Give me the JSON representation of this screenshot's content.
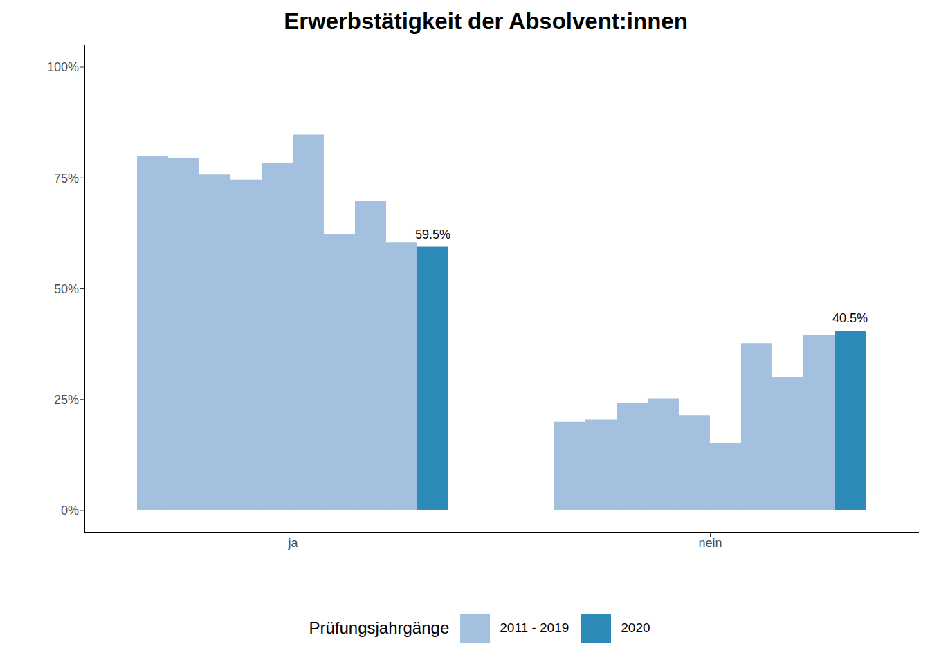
{
  "chart_data": {
    "type": "bar",
    "title": "Erwerbstätigkeit der Absolvent:innen",
    "categories": [
      "ja",
      "nein"
    ],
    "legend_title": "Prüfungsjahrgänge",
    "legend": "bottom",
    "grid": false,
    "ylim": [
      -5,
      105
    ],
    "yticks": [
      {
        "value": 0,
        "label": "0%"
      },
      {
        "value": 25,
        "label": "25%"
      },
      {
        "value": 50,
        "label": "50%"
      },
      {
        "value": 75,
        "label": "75%"
      },
      {
        "value": 100,
        "label": "100%"
      }
    ],
    "series": [
      {
        "name": "2011 - 2019",
        "color": "#a3c1de",
        "values": [
          [
            80,
            79.5,
            75.8,
            74.6,
            78.4,
            84.8,
            62.3,
            69.9,
            60.5
          ],
          [
            20,
            20.5,
            24.2,
            25.2,
            21.5,
            15.3,
            37.7,
            30.1,
            39.5
          ]
        ]
      },
      {
        "name": "2020",
        "color": "#2e8bb9",
        "values": [
          59.5,
          40.5
        ],
        "data_labels": true,
        "value_labels": [
          "59.5%",
          "40.5%"
        ]
      }
    ]
  }
}
